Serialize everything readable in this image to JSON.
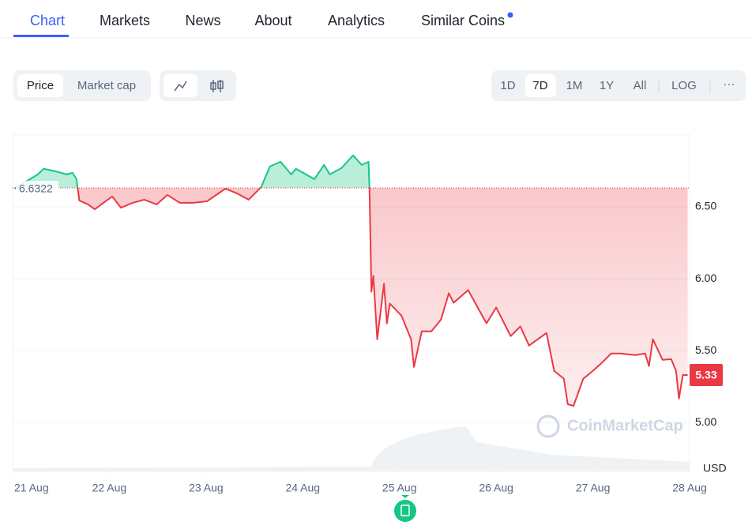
{
  "tabs": [
    "Chart",
    "Markets",
    "News",
    "About",
    "Analytics",
    "Similar Coins"
  ],
  "metric_toggle": [
    "Price",
    "Market cap"
  ],
  "ranges": [
    "1D",
    "7D",
    "1M",
    "1Y",
    "All",
    "LOG"
  ],
  "more": "···",
  "chart_data": {
    "type": "line",
    "x": [
      0.02,
      0.26,
      0.32,
      0.44,
      0.56,
      0.62,
      0.66,
      0.69,
      0.78,
      0.85,
      0.97,
      1.03,
      1.12,
      1.24,
      1.36,
      1.49,
      1.6,
      1.73,
      1.87,
      2.01,
      2.14,
      2.2,
      2.32,
      2.44,
      2.57,
      2.66,
      2.77,
      2.88,
      2.93,
      3.12,
      3.22,
      3.28,
      3.4,
      3.52,
      3.61,
      3.68,
      3.69,
      3.71,
      3.73,
      3.77,
      3.84,
      3.87,
      3.9,
      4.02,
      4.12,
      4.15,
      4.23,
      4.33,
      4.43,
      4.51,
      4.56,
      4.71,
      4.8,
      4.9,
      5.0,
      5.15,
      5.25,
      5.34,
      5.52,
      5.6,
      5.7,
      5.74,
      5.8,
      5.9,
      6.0,
      6.09,
      6.19,
      6.29,
      6.44,
      6.54,
      6.58,
      6.62,
      6.72,
      6.81,
      6.86,
      6.89,
      6.93,
      6.98
    ],
    "values": [
      6.627,
      6.726,
      6.765,
      6.748,
      6.726,
      6.737,
      6.693,
      6.544,
      6.517,
      6.483,
      6.544,
      6.572,
      6.494,
      6.528,
      6.55,
      6.517,
      6.583,
      6.528,
      6.528,
      6.539,
      6.599,
      6.627,
      6.594,
      6.55,
      6.638,
      6.781,
      6.814,
      6.726,
      6.765,
      6.693,
      6.792,
      6.726,
      6.77,
      6.858,
      6.792,
      6.814,
      6.627,
      5.91,
      6.02,
      5.579,
      5.965,
      5.689,
      5.827,
      5.744,
      5.579,
      5.386,
      5.634,
      5.634,
      5.717,
      5.899,
      5.833,
      5.921,
      5.811,
      5.69,
      5.8,
      5.601,
      5.668,
      5.535,
      5.623,
      5.359,
      5.304,
      5.127,
      5.116,
      5.304,
      5.359,
      5.414,
      5.48,
      5.48,
      5.469,
      5.48,
      5.392,
      5.579,
      5.436,
      5.441,
      5.359,
      5.166,
      5.331,
      5.33
    ],
    "colors": {
      "up": "#16c784",
      "down": "#ea3943"
    },
    "baseline": 6.6322,
    "current_price": 5.33,
    "xlim": [
      0,
      7
    ],
    "ylim": [
      4.66,
      7.0
    ],
    "xticks": [
      {
        "value": 0,
        "label": "21 Aug"
      },
      {
        "value": 1,
        "label": "22 Aug"
      },
      {
        "value": 2,
        "label": "23 Aug"
      },
      {
        "value": 3,
        "label": "24 Aug"
      },
      {
        "value": 4,
        "label": "25 Aug"
      },
      {
        "value": 5,
        "label": "26 Aug"
      },
      {
        "value": 6,
        "label": "27 Aug"
      },
      {
        "value": 7,
        "label": "28 Aug"
      }
    ],
    "yticks": [
      {
        "value": 5,
        "label": "5.00"
      },
      {
        "value": 5.5,
        "label": "5.50"
      },
      {
        "value": 6,
        "label": "6.00"
      },
      {
        "value": 6.5,
        "label": "6.50"
      }
    ],
    "y_unit": "USD",
    "watermark": "CoinMarketCap",
    "grid": true
  }
}
